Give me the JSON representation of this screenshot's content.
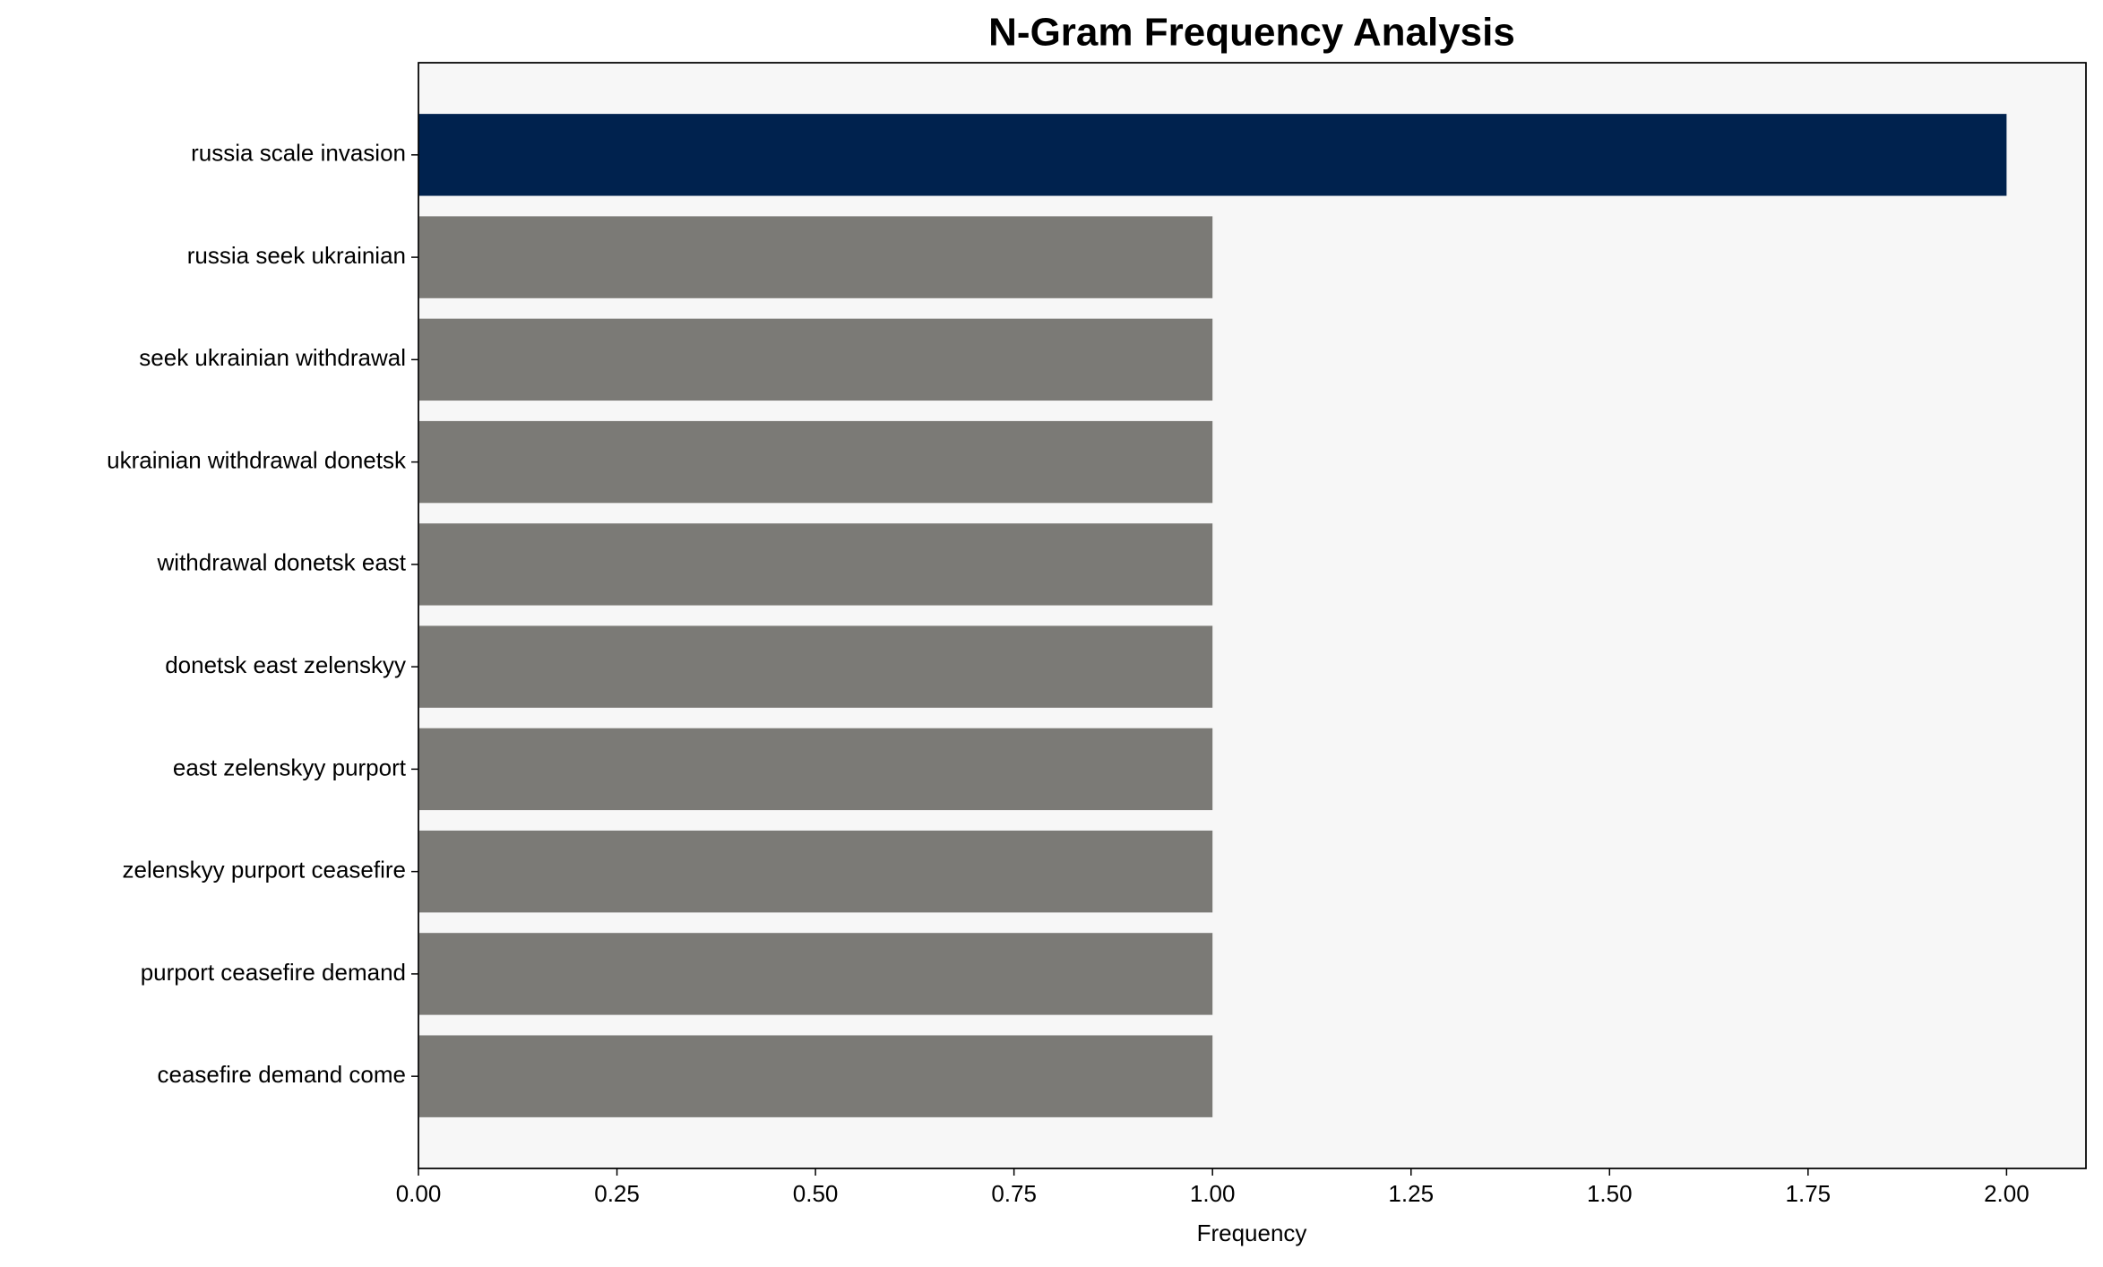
{
  "chart_data": {
    "type": "barh",
    "title": "N-Gram Frequency Analysis",
    "x_label": "Frequency",
    "categories": [
      "russia scale invasion",
      "russia seek ukrainian",
      "seek ukrainian withdrawal",
      "ukrainian withdrawal donetsk",
      "withdrawal donetsk east",
      "donetsk east zelenskyy",
      "east zelenskyy purport",
      "zelenskyy purport ceasefire",
      "purport ceasefire demand",
      "ceasefire demand come"
    ],
    "values": [
      2,
      1,
      1,
      1,
      1,
      1,
      1,
      1,
      1,
      1
    ],
    "colors": [
      "#00224e",
      "#7b7a76",
      "#7b7a76",
      "#7b7a76",
      "#7b7a76",
      "#7b7a76",
      "#7b7a76",
      "#7b7a76",
      "#7b7a76",
      "#7b7a76"
    ],
    "xlim": [
      0,
      2.1
    ],
    "xticks": [
      {
        "value": 0,
        "label": "0.00"
      },
      {
        "value": 0.25,
        "label": "0.25"
      },
      {
        "value": 0.5,
        "label": "0.50"
      },
      {
        "value": 0.75,
        "label": "0.75"
      },
      {
        "value": 1,
        "label": "1.00"
      },
      {
        "value": 1.25,
        "label": "1.25"
      },
      {
        "value": 1.5,
        "label": "1.50"
      },
      {
        "value": 1.75,
        "label": "1.75"
      },
      {
        "value": 2,
        "label": "2.00"
      }
    ],
    "background": "#f7f7f7"
  }
}
